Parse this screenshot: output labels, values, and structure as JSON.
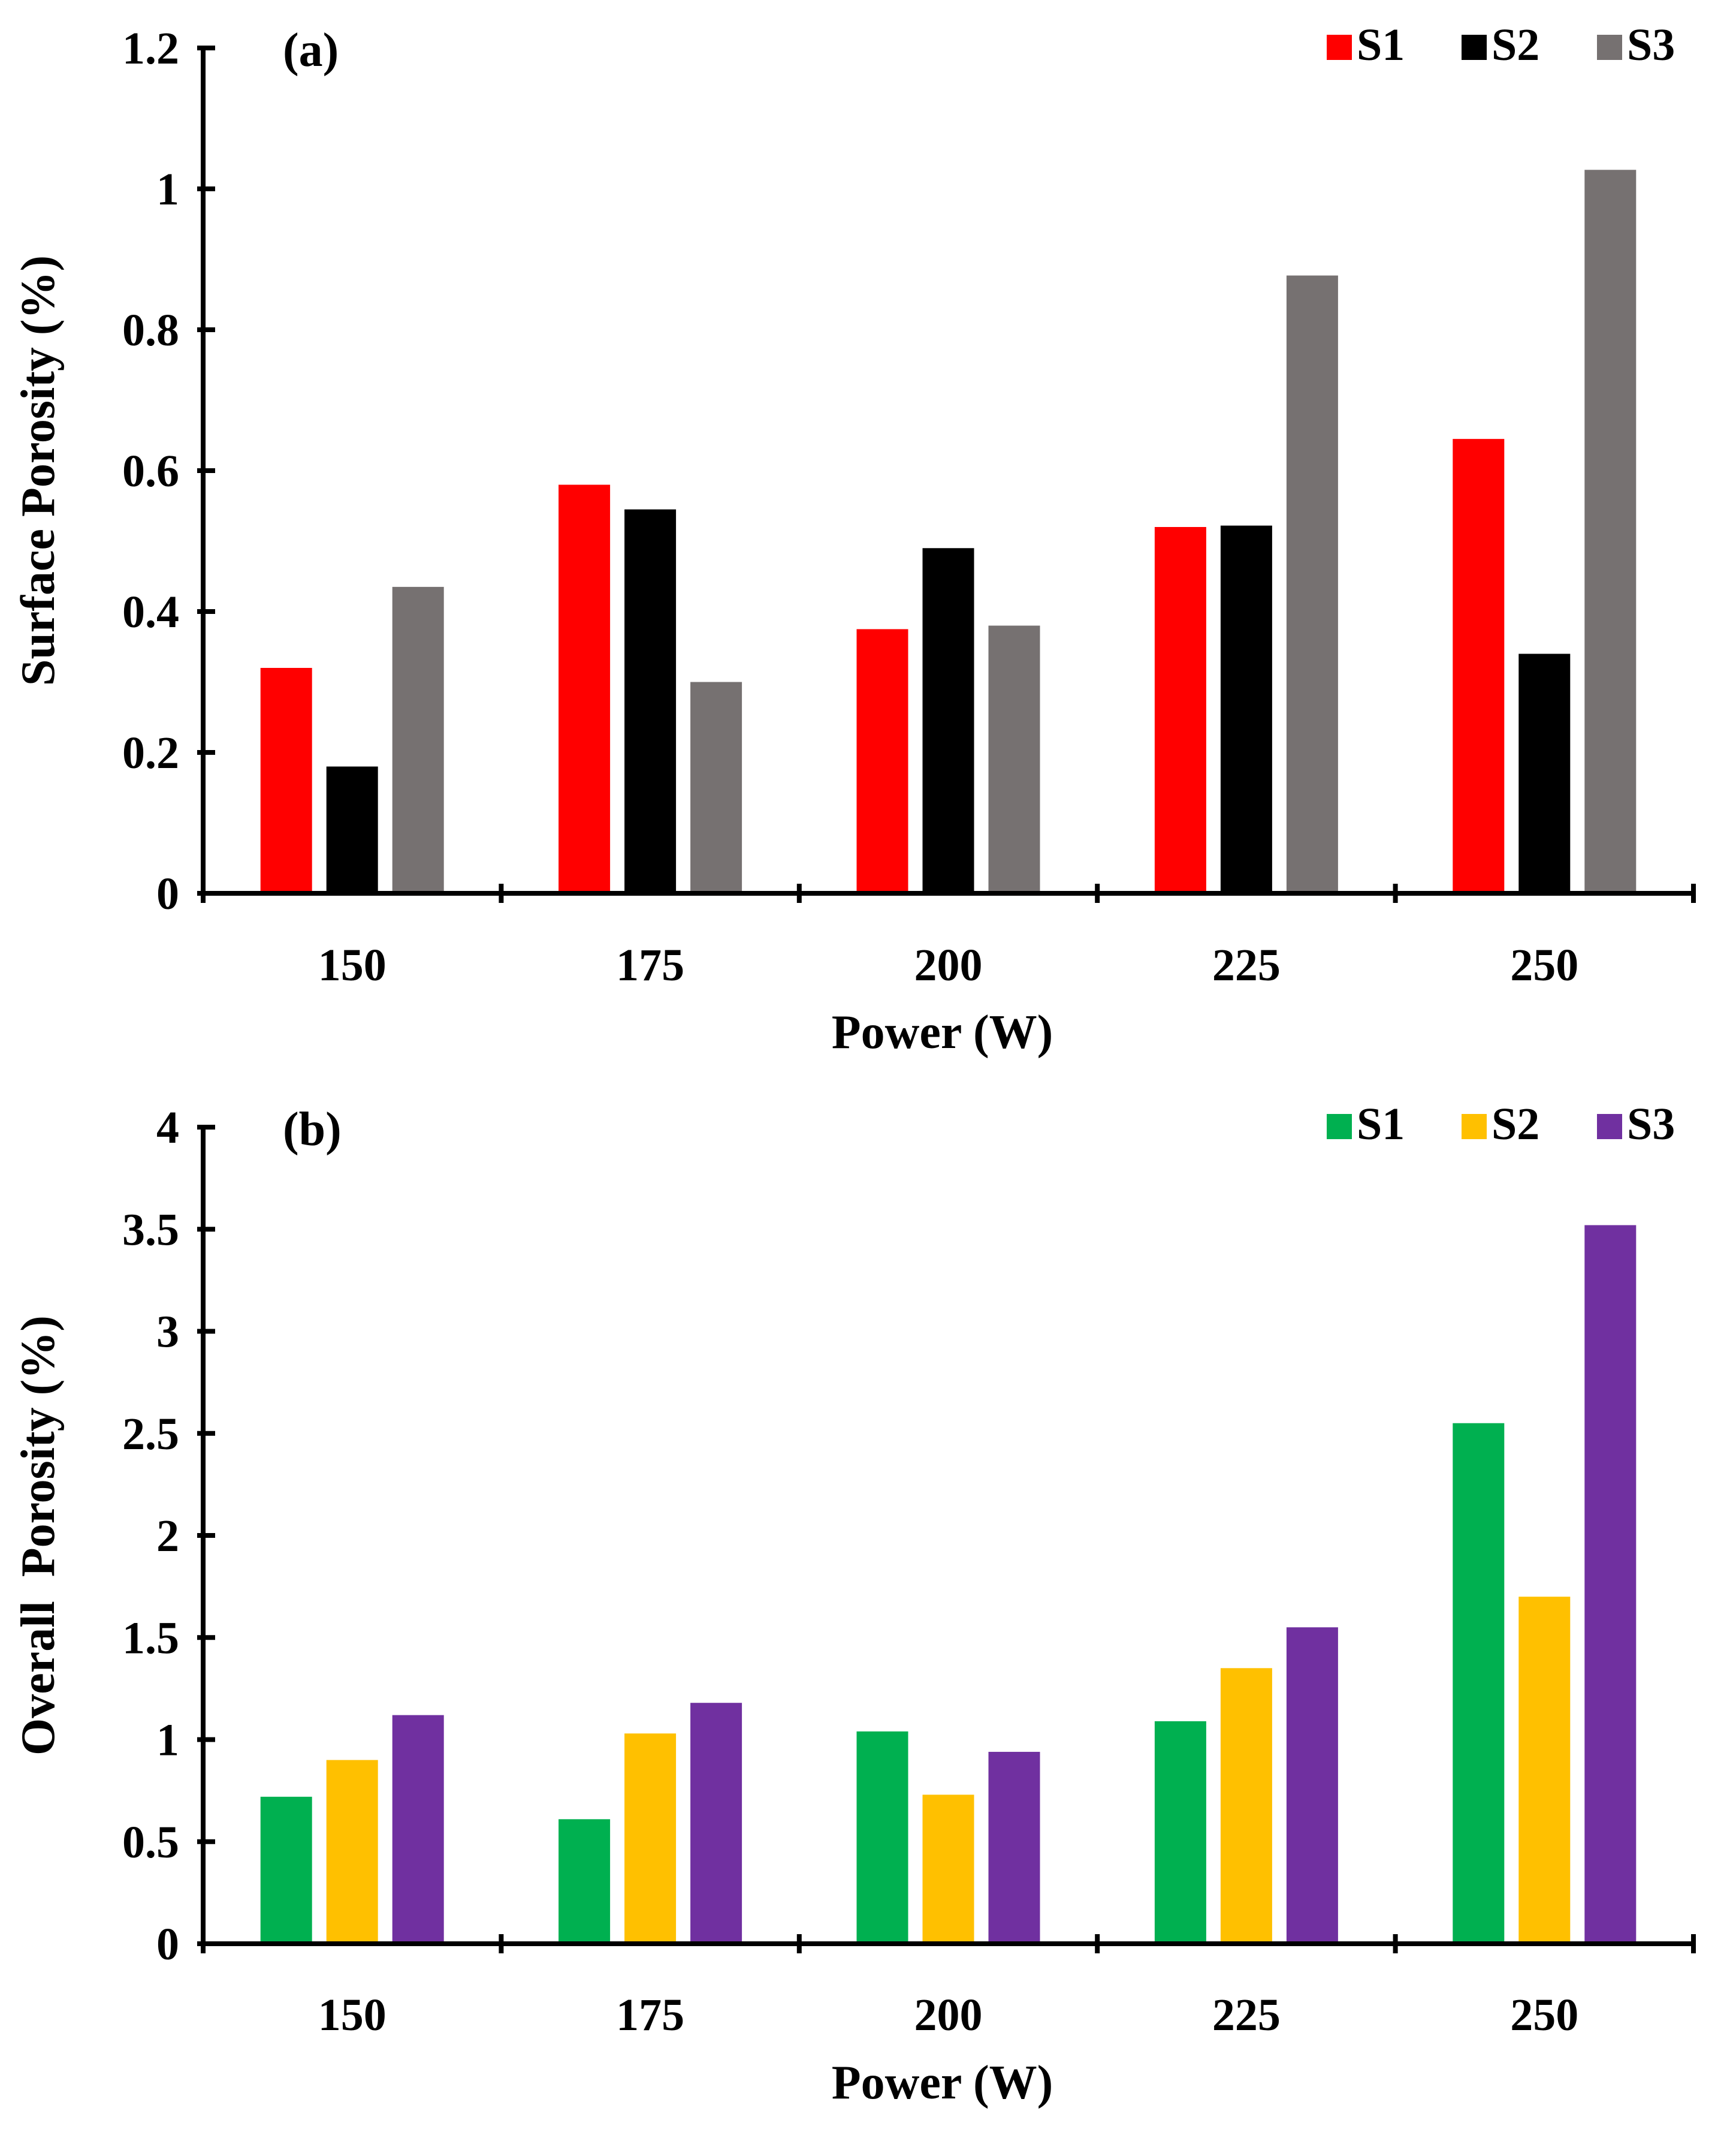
{
  "chart_data": [
    {
      "type": "bar",
      "panel_label": "(a)",
      "categories": [
        "150",
        "175",
        "200",
        "225",
        "250"
      ],
      "series": [
        {
          "name": "S1",
          "color": "#ff0000",
          "values": [
            0.32,
            0.58,
            0.375,
            0.52,
            0.645
          ]
        },
        {
          "name": "S2",
          "color": "#000000",
          "values": [
            0.18,
            0.545,
            0.49,
            0.522,
            0.34
          ]
        },
        {
          "name": "S3",
          "color": "#767171",
          "values": [
            0.435,
            0.3,
            0.38,
            0.877,
            1.027
          ]
        }
      ],
      "xlabel": "Power (W)",
      "ylabel": "Surface Porosity (%)",
      "ylim": [
        0,
        1.2
      ],
      "yticks": [
        0,
        0.2,
        0.4,
        0.6,
        0.8,
        1,
        1.2
      ],
      "ytick_labels": [
        "0",
        "0.2",
        "0.4",
        "0.6",
        "0.8",
        "1",
        "1.2"
      ],
      "legend_position": "top-right",
      "grid": false
    },
    {
      "type": "bar",
      "panel_label": "(b)",
      "categories": [
        "150",
        "175",
        "200",
        "225",
        "250"
      ],
      "series": [
        {
          "name": "S1",
          "color": "#00b050",
          "values": [
            0.72,
            0.61,
            1.04,
            1.09,
            2.55
          ]
        },
        {
          "name": "S2",
          "color": "#ffc000",
          "values": [
            0.9,
            1.03,
            0.73,
            1.35,
            1.7
          ]
        },
        {
          "name": "S3",
          "color": "#7030a0",
          "values": [
            1.12,
            1.18,
            0.94,
            1.55,
            3.52
          ]
        }
      ],
      "xlabel": "Power (W)",
      "ylabel": "Overall  Porosity (%)",
      "ylim": [
        0,
        4
      ],
      "yticks": [
        0,
        0.5,
        1,
        1.5,
        2,
        2.5,
        3,
        3.5,
        4
      ],
      "ytick_labels": [
        "0",
        "0.5",
        "1",
        "1.5",
        "2",
        "2.5",
        "3",
        "3.5",
        "4"
      ],
      "legend_position": "top-right",
      "grid": false
    }
  ]
}
